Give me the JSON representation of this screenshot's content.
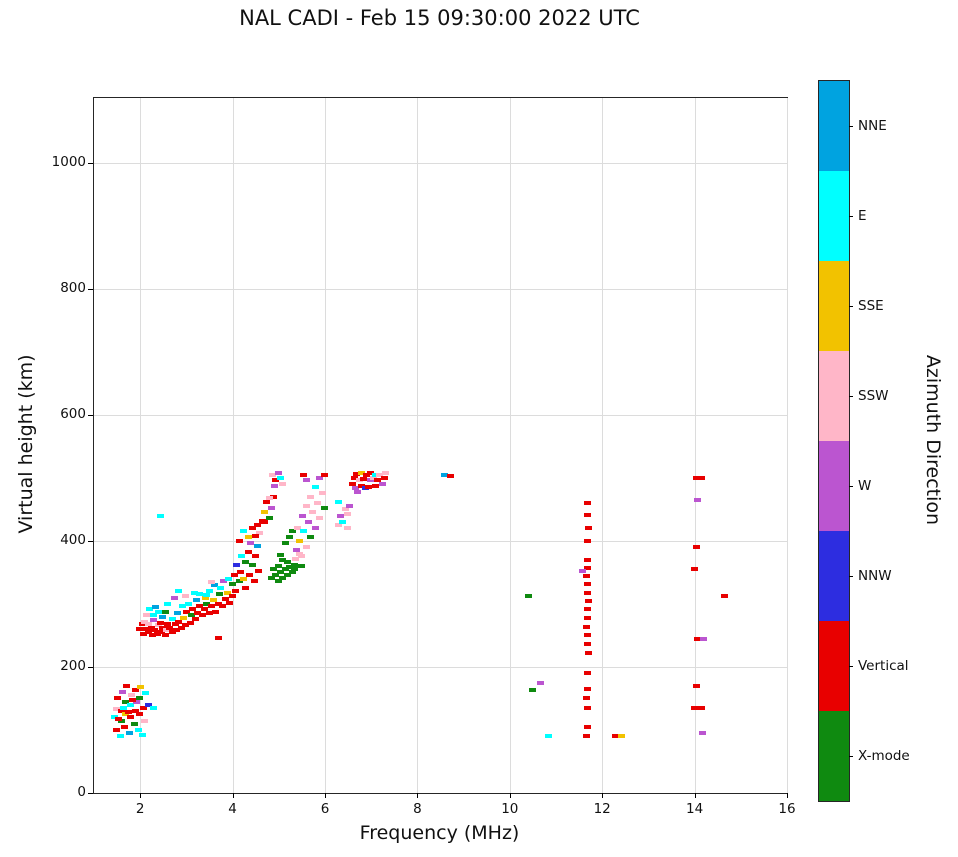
{
  "title": "NAL CADI - Feb 15 09:30:00 2022 UTC",
  "chart_data": {
    "type": "scatter",
    "title": "NAL CADI - Feb 15 09:30:00 2022 UTC",
    "xlabel": "Frequency (MHz)",
    "ylabel": "Virtual height (km)",
    "legend_title": "Azimuth Direction",
    "xlim": [
      1,
      16
    ],
    "ylim": [
      0,
      1103
    ],
    "xticks": [
      2,
      4,
      6,
      8,
      10,
      12,
      14,
      16
    ],
    "yticks": [
      0,
      200,
      400,
      600,
      800,
      1000
    ],
    "grid": true,
    "categories": {
      "NNE": "#00a3e0",
      "E": "#00ffff",
      "SSE": "#f2c200",
      "SSW": "#ffb6c8",
      "W": "#bb55d0",
      "NNW": "#2d2de0",
      "Vertical": "#e80000",
      "X-mode": "#0f8a10"
    },
    "colorbar_order_top_to_bottom": [
      "NNE",
      "E",
      "SSE",
      "SSW",
      "W",
      "NNW",
      "Vertical",
      "X-mode"
    ],
    "points": [
      [
        1.45,
        120,
        "E"
      ],
      [
        1.5,
        100,
        "Vertical"
      ],
      [
        1.5,
        133,
        "SSW"
      ],
      [
        1.52,
        150,
        "Vertical"
      ],
      [
        1.58,
        90,
        "E"
      ],
      [
        1.6,
        115,
        "X-mode"
      ],
      [
        1.6,
        130,
        "Vertical"
      ],
      [
        1.62,
        160,
        "W"
      ],
      [
        1.68,
        105,
        "Vertical"
      ],
      [
        1.7,
        125,
        "SSE"
      ],
      [
        1.7,
        145,
        "X-mode"
      ],
      [
        1.72,
        170,
        "Vertical"
      ],
      [
        1.78,
        95,
        "NNE"
      ],
      [
        1.8,
        120,
        "Vertical"
      ],
      [
        1.8,
        140,
        "E"
      ],
      [
        1.82,
        155,
        "SSW"
      ],
      [
        1.88,
        110,
        "X-mode"
      ],
      [
        1.9,
        130,
        "Vertical"
      ],
      [
        1.9,
        163,
        "Vertical"
      ],
      [
        1.92,
        145,
        "W"
      ],
      [
        1.98,
        100,
        "E"
      ],
      [
        2.0,
        125,
        "Vertical"
      ],
      [
        2.0,
        150,
        "X-mode"
      ],
      [
        2.02,
        168,
        "SSE"
      ],
      [
        2.08,
        135,
        "Vertical"
      ],
      [
        2.1,
        115,
        "SSW"
      ],
      [
        2.12,
        158,
        "E"
      ],
      [
        2.2,
        140,
        "NNW"
      ],
      [
        1.55,
        118,
        "Vertical"
      ],
      [
        1.65,
        135,
        "E"
      ],
      [
        1.75,
        128,
        "Vertical"
      ],
      [
        1.85,
        148,
        "Vertical"
      ],
      [
        2.05,
        92,
        "E"
      ],
      [
        2.3,
        135,
        "E"
      ],
      [
        2.0,
        260,
        "Vertical"
      ],
      [
        2.05,
        268,
        "Vertical"
      ],
      [
        2.08,
        252,
        "Vertical"
      ],
      [
        2.1,
        272,
        "SSW"
      ],
      [
        2.15,
        260,
        "Vertical"
      ],
      [
        2.18,
        255,
        "Vertical"
      ],
      [
        2.2,
        268,
        "SSW"
      ],
      [
        2.25,
        262,
        "Vertical"
      ],
      [
        2.28,
        250,
        "Vertical"
      ],
      [
        2.3,
        274,
        "W"
      ],
      [
        2.33,
        258,
        "Vertical"
      ],
      [
        2.38,
        252,
        "Vertical"
      ],
      [
        2.4,
        266,
        "SSW"
      ],
      [
        2.45,
        270,
        "Vertical"
      ],
      [
        2.48,
        255,
        "Vertical"
      ],
      [
        2.5,
        262,
        "Vertical"
      ],
      [
        2.55,
        250,
        "Vertical"
      ],
      [
        2.58,
        258,
        "SSW"
      ],
      [
        2.6,
        268,
        "Vertical"
      ],
      [
        2.3,
        283,
        "E"
      ],
      [
        2.4,
        287,
        "E"
      ],
      [
        2.5,
        279,
        "NNE"
      ],
      [
        2.22,
        292,
        "E"
      ],
      [
        2.6,
        300,
        "E"
      ],
      [
        2.55,
        287,
        "X-mode"
      ],
      [
        2.15,
        283,
        "SSW"
      ],
      [
        2.35,
        295,
        "NNE"
      ],
      [
        2.45,
        440,
        "E"
      ],
      [
        2.65,
        262,
        "Vertical"
      ],
      [
        2.7,
        256,
        "Vertical"
      ],
      [
        2.72,
        276,
        "E"
      ],
      [
        2.78,
        268,
        "Vertical"
      ],
      [
        2.8,
        258,
        "Vertical"
      ],
      [
        2.82,
        286,
        "NNE"
      ],
      [
        2.85,
        272,
        "Vertical"
      ],
      [
        2.9,
        262,
        "Vertical"
      ],
      [
        2.92,
        296,
        "E"
      ],
      [
        2.95,
        278,
        "SSE"
      ],
      [
        3.0,
        266,
        "Vertical"
      ],
      [
        3.02,
        288,
        "Vertical"
      ],
      [
        3.05,
        300,
        "E"
      ],
      [
        3.1,
        270,
        "Vertical"
      ],
      [
        3.12,
        282,
        "X-mode"
      ],
      [
        3.15,
        292,
        "Vertical"
      ],
      [
        3.2,
        276,
        "Vertical"
      ],
      [
        3.22,
        306,
        "NNE"
      ],
      [
        3.25,
        286,
        "Vertical"
      ],
      [
        3.3,
        296,
        "Vertical"
      ],
      [
        3.3,
        316,
        "E"
      ],
      [
        2.75,
        310,
        "W"
      ],
      [
        2.85,
        320,
        "E"
      ],
      [
        3.0,
        312,
        "SSW"
      ],
      [
        3.18,
        318,
        "E"
      ],
      [
        3.35,
        282,
        "Vertical"
      ],
      [
        3.4,
        292,
        "Vertical"
      ],
      [
        3.42,
        310,
        "SSE"
      ],
      [
        3.45,
        300,
        "X-mode"
      ],
      [
        3.5,
        286,
        "Vertical"
      ],
      [
        3.52,
        320,
        "E"
      ],
      [
        3.55,
        296,
        "Vertical"
      ],
      [
        3.6,
        306,
        "SSE"
      ],
      [
        3.62,
        330,
        "NNE"
      ],
      [
        3.65,
        288,
        "Vertical"
      ],
      [
        3.7,
        300,
        "Vertical"
      ],
      [
        3.72,
        316,
        "X-mode"
      ],
      [
        3.75,
        326,
        "E"
      ],
      [
        3.8,
        296,
        "Vertical"
      ],
      [
        3.82,
        336,
        "W"
      ],
      [
        3.85,
        308,
        "Vertical"
      ],
      [
        3.9,
        318,
        "SSE"
      ],
      [
        3.92,
        340,
        "E"
      ],
      [
        3.95,
        302,
        "Vertical"
      ],
      [
        4.0,
        312,
        "Vertical"
      ],
      [
        3.7,
        246,
        "Vertical"
      ],
      [
        3.55,
        335,
        "SSW"
      ],
      [
        3.45,
        315,
        "E"
      ],
      [
        4.0,
        332,
        "X-mode"
      ],
      [
        4.05,
        346,
        "Vertical"
      ],
      [
        4.08,
        320,
        "Vertical"
      ],
      [
        4.1,
        362,
        "NNW"
      ],
      [
        4.15,
        336,
        "X-mode"
      ],
      [
        4.18,
        350,
        "Vertical"
      ],
      [
        4.2,
        376,
        "E"
      ],
      [
        4.25,
        340,
        "SSE"
      ],
      [
        4.28,
        326,
        "Vertical"
      ],
      [
        4.3,
        366,
        "X-mode"
      ],
      [
        4.35,
        382,
        "Vertical"
      ],
      [
        4.38,
        346,
        "Vertical"
      ],
      [
        4.4,
        396,
        "W"
      ],
      [
        4.45,
        362,
        "X-mode"
      ],
      [
        4.48,
        336,
        "Vertical"
      ],
      [
        4.5,
        376,
        "Vertical"
      ],
      [
        4.55,
        392,
        "NNE"
      ],
      [
        4.58,
        352,
        "Vertical"
      ],
      [
        4.6,
        412,
        "SSW"
      ],
      [
        4.45,
        420,
        "Vertical"
      ],
      [
        4.35,
        406,
        "SSE"
      ],
      [
        4.25,
        416,
        "E"
      ],
      [
        4.15,
        400,
        "Vertical"
      ],
      [
        4.5,
        408,
        "Vertical"
      ],
      [
        4.55,
        425,
        "Vertical"
      ],
      [
        4.65,
        432,
        "Vertical"
      ],
      [
        4.7,
        446,
        "SSE"
      ],
      [
        4.75,
        462,
        "Vertical"
      ],
      [
        4.8,
        436,
        "X-mode"
      ],
      [
        4.85,
        452,
        "W"
      ],
      [
        4.9,
        470,
        "Vertical"
      ],
      [
        4.7,
        430,
        "Vertical"
      ],
      [
        4.8,
        468,
        "SSW"
      ],
      [
        4.88,
        505,
        "SSW"
      ],
      [
        4.95,
        496,
        "Vertical"
      ],
      [
        5.0,
        508,
        "W"
      ],
      [
        5.05,
        500,
        "E"
      ],
      [
        5.1,
        490,
        "SSW"
      ],
      [
        4.92,
        488,
        "W"
      ],
      [
        4.85,
        342,
        "X-mode"
      ],
      [
        4.9,
        356,
        "X-mode"
      ],
      [
        4.95,
        346,
        "X-mode"
      ],
      [
        5.0,
        360,
        "X-mode"
      ],
      [
        5.0,
        336,
        "X-mode"
      ],
      [
        5.05,
        350,
        "X-mode"
      ],
      [
        5.1,
        342,
        "X-mode"
      ],
      [
        5.1,
        370,
        "X-mode"
      ],
      [
        5.15,
        356,
        "X-mode"
      ],
      [
        5.2,
        346,
        "X-mode"
      ],
      [
        5.2,
        366,
        "X-mode"
      ],
      [
        5.25,
        358,
        "X-mode"
      ],
      [
        5.3,
        350,
        "X-mode"
      ],
      [
        5.15,
        396,
        "X-mode"
      ],
      [
        5.25,
        406,
        "X-mode"
      ],
      [
        5.3,
        416,
        "X-mode"
      ],
      [
        5.35,
        362,
        "X-mode"
      ],
      [
        5.05,
        378,
        "X-mode"
      ],
      [
        5.38,
        372,
        "SSW"
      ],
      [
        5.4,
        386,
        "W"
      ],
      [
        5.42,
        420,
        "SSW"
      ],
      [
        5.45,
        400,
        "SSE"
      ],
      [
        5.5,
        376,
        "SSW"
      ],
      [
        5.52,
        440,
        "W"
      ],
      [
        5.55,
        416,
        "E"
      ],
      [
        5.6,
        390,
        "SSW"
      ],
      [
        5.6,
        456,
        "SSW"
      ],
      [
        5.65,
        430,
        "W"
      ],
      [
        5.7,
        406,
        "X-mode"
      ],
      [
        5.7,
        470,
        "SSW"
      ],
      [
        5.75,
        446,
        "SSW"
      ],
      [
        5.8,
        420,
        "W"
      ],
      [
        5.8,
        486,
        "E"
      ],
      [
        5.85,
        460,
        "SSW"
      ],
      [
        5.9,
        436,
        "SSW"
      ],
      [
        5.9,
        500,
        "W"
      ],
      [
        5.95,
        476,
        "SSW"
      ],
      [
        6.0,
        452,
        "X-mode"
      ],
      [
        6.0,
        505,
        "Vertical"
      ],
      [
        5.55,
        505,
        "Vertical"
      ],
      [
        5.62,
        496,
        "W"
      ],
      [
        5.45,
        380,
        "SSW"
      ],
      [
        5.5,
        360,
        "X-mode"
      ],
      [
        5.35,
        355,
        "X-mode"
      ],
      [
        6.3,
        426,
        "SSW"
      ],
      [
        6.35,
        440,
        "W"
      ],
      [
        6.4,
        430,
        "E"
      ],
      [
        6.45,
        450,
        "SSW"
      ],
      [
        6.5,
        442,
        "SSW"
      ],
      [
        6.55,
        456,
        "W"
      ],
      [
        6.3,
        462,
        "E"
      ],
      [
        6.5,
        420,
        "SSW"
      ],
      [
        6.6,
        490,
        "Vertical"
      ],
      [
        6.65,
        500,
        "Vertical"
      ],
      [
        6.68,
        484,
        "W"
      ],
      [
        6.7,
        506,
        "Vertical"
      ],
      [
        6.75,
        496,
        "SSW"
      ],
      [
        6.8,
        488,
        "Vertical"
      ],
      [
        6.8,
        508,
        "SSE"
      ],
      [
        6.85,
        498,
        "Vertical"
      ],
      [
        6.88,
        484,
        "NNW"
      ],
      [
        6.9,
        505,
        "Vertical"
      ],
      [
        6.95,
        486,
        "Vertical"
      ],
      [
        7.0,
        496,
        "W"
      ],
      [
        7.0,
        508,
        "Vertical"
      ],
      [
        7.05,
        500,
        "SSW"
      ],
      [
        7.1,
        488,
        "Vertical"
      ],
      [
        7.1,
        505,
        "E"
      ],
      [
        7.15,
        496,
        "Vertical"
      ],
      [
        7.2,
        505,
        "SSW"
      ],
      [
        7.25,
        490,
        "W"
      ],
      [
        7.3,
        500,
        "Vertical"
      ],
      [
        7.32,
        508,
        "SSW"
      ],
      [
        6.72,
        478,
        "W"
      ],
      [
        8.6,
        505,
        "NNE"
      ],
      [
        8.72,
        503,
        "Vertical"
      ],
      [
        10.42,
        312,
        "X-mode"
      ],
      [
        10.5,
        163,
        "X-mode"
      ],
      [
        10.68,
        175,
        "W"
      ],
      [
        10.85,
        90,
        "E"
      ],
      [
        11.68,
        90,
        "Vertical"
      ],
      [
        11.7,
        105,
        "Vertical"
      ],
      [
        11.7,
        135,
        "Vertical"
      ],
      [
        11.68,
        150,
        "Vertical"
      ],
      [
        11.7,
        165,
        "Vertical"
      ],
      [
        11.7,
        190,
        "Vertical"
      ],
      [
        11.72,
        222,
        "Vertical"
      ],
      [
        11.7,
        236,
        "Vertical"
      ],
      [
        11.7,
        250,
        "Vertical"
      ],
      [
        11.68,
        264,
        "Vertical"
      ],
      [
        11.7,
        278,
        "Vertical"
      ],
      [
        11.7,
        292,
        "Vertical"
      ],
      [
        11.72,
        305,
        "Vertical"
      ],
      [
        11.7,
        318,
        "Vertical"
      ],
      [
        11.7,
        331,
        "Vertical"
      ],
      [
        11.68,
        344,
        "Vertical"
      ],
      [
        11.7,
        357,
        "Vertical"
      ],
      [
        11.7,
        370,
        "Vertical"
      ],
      [
        11.7,
        400,
        "Vertical"
      ],
      [
        11.72,
        420,
        "Vertical"
      ],
      [
        11.7,
        441,
        "Vertical"
      ],
      [
        11.7,
        460,
        "Vertical"
      ],
      [
        11.58,
        352,
        "W"
      ],
      [
        12.3,
        90,
        "Vertical"
      ],
      [
        12.42,
        90,
        "SSE"
      ],
      [
        14.05,
        500,
        "Vertical"
      ],
      [
        14.15,
        500,
        "Vertical"
      ],
      [
        14.08,
        465,
        "W"
      ],
      [
        14.05,
        390,
        "Vertical"
      ],
      [
        14.0,
        355,
        "Vertical"
      ],
      [
        14.65,
        312,
        "Vertical"
      ],
      [
        14.08,
        245,
        "Vertical"
      ],
      [
        14.2,
        245,
        "W"
      ],
      [
        14.05,
        170,
        "Vertical"
      ],
      [
        14.0,
        135,
        "Vertical"
      ],
      [
        14.15,
        135,
        "Vertical"
      ],
      [
        14.18,
        95,
        "W"
      ]
    ]
  }
}
